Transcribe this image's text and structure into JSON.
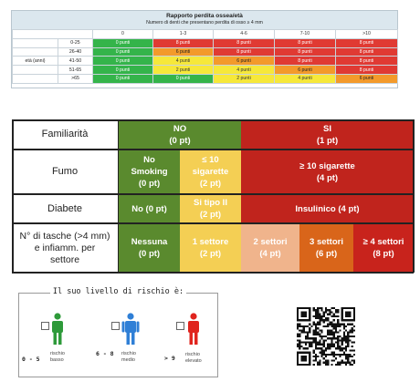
{
  "bone_table": {
    "title": "Rapporto perdita ossea/età",
    "subtitle": "Numero di denti che presentano perdita di osso ≥ 4 mm",
    "row_group_label": "età (anni)",
    "columns": [
      "0",
      "1-3",
      "4-6",
      "7-10",
      ">10"
    ],
    "rows": [
      {
        "age": "0-25",
        "cells": [
          {
            "t": "0 punti",
            "c": "green"
          },
          {
            "t": "8 punti",
            "c": "red"
          },
          {
            "t": "8 punti",
            "c": "red"
          },
          {
            "t": "8 punti",
            "c": "red"
          },
          {
            "t": "8 punti",
            "c": "red"
          }
        ]
      },
      {
        "age": "26-40",
        "cells": [
          {
            "t": "0 punti",
            "c": "green"
          },
          {
            "t": "6 punti",
            "c": "orange"
          },
          {
            "t": "8 punti",
            "c": "red"
          },
          {
            "t": "8 punti",
            "c": "red"
          },
          {
            "t": "8 punti",
            "c": "red"
          }
        ]
      },
      {
        "age": "41-50",
        "cells": [
          {
            "t": "0 punti",
            "c": "green"
          },
          {
            "t": "4 punti",
            "c": "yellow"
          },
          {
            "t": "6 punti",
            "c": "orange"
          },
          {
            "t": "8 punti",
            "c": "red"
          },
          {
            "t": "8 punti",
            "c": "red"
          }
        ]
      },
      {
        "age": "51-65",
        "cells": [
          {
            "t": "0 punti",
            "c": "green"
          },
          {
            "t": "2 punti",
            "c": "yellow"
          },
          {
            "t": "4 punti",
            "c": "yellow"
          },
          {
            "t": "6 punti",
            "c": "orange"
          },
          {
            "t": "8 punti",
            "c": "red"
          }
        ]
      },
      {
        "age": ">65",
        "cells": [
          {
            "t": "0 punti",
            "c": "green"
          },
          {
            "t": "0 punti",
            "c": "green"
          },
          {
            "t": "2 punti",
            "c": "yellow"
          },
          {
            "t": "4 punti",
            "c": "yellow"
          },
          {
            "t": "6 punti",
            "c": "orange"
          }
        ]
      }
    ]
  },
  "risk_table": {
    "familiarita": {
      "label": "Familiarità",
      "no": "NO\n(0 pt)",
      "si": "SI\n(1 pt)"
    },
    "fumo": {
      "label": "Fumo",
      "no": "No\nSmoking\n(0 pt)",
      "mid": "≤ 10\nsigarette\n(2 pt)",
      "high": "≥ 10 sigarette\n(4 pt)"
    },
    "diabete": {
      "label": "Diabete",
      "no": "No (0 pt)",
      "mid": "Si tipo II\n(2 pt)",
      "high": "Insulinico (4 pt)"
    },
    "tasche": {
      "label": "N° di tasche (>4 mm)\ne infiamm. per\nsettore",
      "c0": "Nessuna\n(0 pt)",
      "c1": "1 settore\n(2 pt)",
      "c2": "2 settori\n(4 pt)",
      "c3": "3 settori\n(6 pt)",
      "c4": "≥ 4 settori\n(8 pt)"
    }
  },
  "risk_level": {
    "title": "Il suo livello di rischio è:",
    "items": [
      {
        "range": "0 - 5",
        "label": "rischio\nbasso",
        "color": "#2e9a3a"
      },
      {
        "range": "6 - 8",
        "label": "rischio\nmedio",
        "color": "#2f7fd6"
      },
      {
        "range": "> 9",
        "label": "rischio\nelevato",
        "color": "#e0241e"
      }
    ]
  },
  "colors": {
    "green": "#5a8a2e",
    "yellow": "#f4cf54",
    "red": "#c0241d",
    "peach": "#f0b48c",
    "orange": "#d9651a"
  }
}
